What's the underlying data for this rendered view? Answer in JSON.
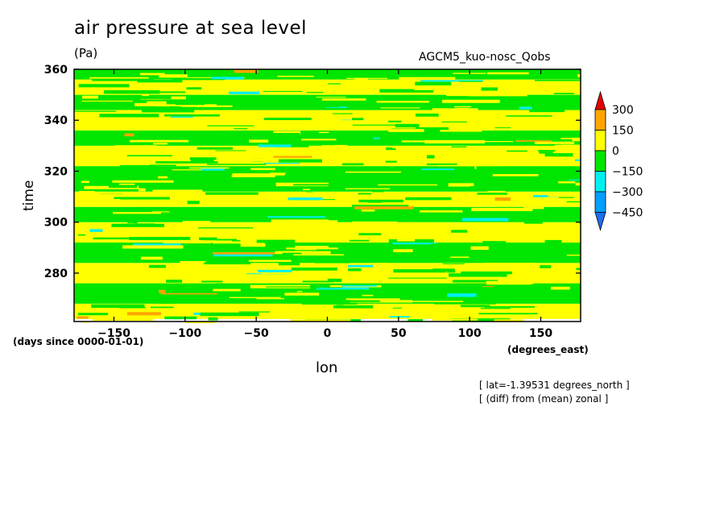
{
  "chart_data": {
    "type": "heatmap",
    "title": "air pressure at sea level",
    "units": "(Pa)",
    "dataset": "AGCM5_kuo-nosc_Qobs",
    "xlabel": "lon",
    "ylabel": "time",
    "x_units": "(degrees_east)",
    "y_units": "(days since 0000-01-01)",
    "notes": [
      "[ lat=-1.39531 degrees_north ]",
      "[ (diff) from (mean) zonal ]"
    ],
    "xlim": [
      -178,
      178
    ],
    "ylim": [
      261,
      360
    ],
    "x_ticks": [
      -150,
      -100,
      -50,
      0,
      50,
      100,
      150
    ],
    "y_ticks": [
      280,
      300,
      320,
      340,
      360
    ],
    "levels": [
      -450,
      -300,
      -150,
      0,
      150,
      300
    ],
    "level_labels": [
      "300",
      "150",
      "0",
      "-150",
      "-300",
      "-450"
    ],
    "colors": {
      "below_-450": "#1e6ef0",
      "-450_to_-300": "#00a0ff",
      "-300_to_-150": "#00f0f0",
      "-150_to_0": "#00e600",
      "0_to_150": "#ffff00",
      "150_to_300": "#ffa500",
      "above_300": "#e60000"
    },
    "dominant_bands": [
      {
        "time": [
          262,
          268
        ],
        "class": "0_to_150"
      },
      {
        "time": [
          268,
          276
        ],
        "class": "-150_to_0"
      },
      {
        "time": [
          276,
          284
        ],
        "class": "0_to_150"
      },
      {
        "time": [
          284,
          292
        ],
        "class": "-150_to_0"
      },
      {
        "time": [
          292,
          300
        ],
        "class": "0_to_150"
      },
      {
        "time": [
          300,
          306
        ],
        "class": "-150_to_0"
      },
      {
        "time": [
          306,
          312
        ],
        "class": "0_to_150"
      },
      {
        "time": [
          312,
          322
        ],
        "class": "-150_to_0"
      },
      {
        "time": [
          322,
          330
        ],
        "class": "0_to_150"
      },
      {
        "time": [
          330,
          336
        ],
        "class": "-150_to_0"
      },
      {
        "time": [
          336,
          344
        ],
        "class": "0_to_150"
      },
      {
        "time": [
          344,
          350
        ],
        "class": "-150_to_0"
      },
      {
        "time": [
          350,
          356
        ],
        "class": "0_to_150"
      },
      {
        "time": [
          356,
          360
        ],
        "class": "-150_to_0"
      }
    ],
    "grid": false,
    "legend": "right"
  }
}
